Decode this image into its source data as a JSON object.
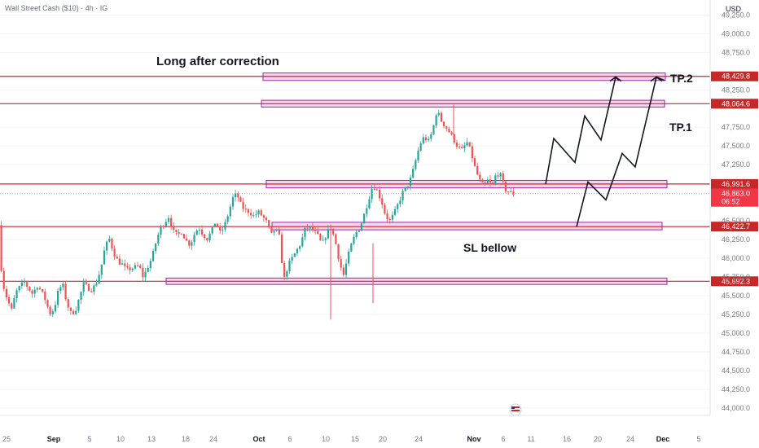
{
  "header": {
    "symbol": "Wall Street Cash ($10) · 4h · IG",
    "currency": "USD"
  },
  "chart_data": {
    "type": "candlestick",
    "title": "",
    "ylim": [
      43900,
      49450
    ],
    "yticks": [
      {
        "value": 49250,
        "label": "49,250.0"
      },
      {
        "value": 49000,
        "label": "49,000.0"
      },
      {
        "value": 48750,
        "label": "48,750.0"
      },
      {
        "value": 48250,
        "label": "48,250.0"
      },
      {
        "value": 47750,
        "label": "47,750.0"
      },
      {
        "value": 47500,
        "label": "47,500.0"
      },
      {
        "value": 47250,
        "label": "47,250.0"
      },
      {
        "value": 46500,
        "label": "46,500.0"
      },
      {
        "value": 46250,
        "label": "46,250.0"
      },
      {
        "value": 46000,
        "label": "46,000.0"
      },
      {
        "value": 45750,
        "label": "45,750.0"
      },
      {
        "value": 45500,
        "label": "45,500.0"
      },
      {
        "value": 45250,
        "label": "45,250.0"
      },
      {
        "value": 45000,
        "label": "45,000.0"
      },
      {
        "value": 44750,
        "label": "44,750.0"
      },
      {
        "value": 44500,
        "label": "44,500.0"
      },
      {
        "value": 44250,
        "label": "44,250.0"
      },
      {
        "value": 44000,
        "label": "44,000.0"
      }
    ],
    "xticks": [
      {
        "label": "25",
        "bold": false
      },
      {
        "label": "Sep",
        "bold": true
      },
      {
        "label": "5",
        "bold": false
      },
      {
        "label": "10",
        "bold": false
      },
      {
        "label": "13",
        "bold": false
      },
      {
        "label": "18",
        "bold": false
      },
      {
        "label": "24",
        "bold": false
      },
      {
        "label": "Oct",
        "bold": true
      },
      {
        "label": "6",
        "bold": false
      },
      {
        "label": "10",
        "bold": false
      },
      {
        "label": "15",
        "bold": false
      },
      {
        "label": "20",
        "bold": false
      },
      {
        "label": "24",
        "bold": false
      },
      {
        "label": "Nov",
        "bold": true
      },
      {
        "label": "6",
        "bold": false
      },
      {
        "label": "11",
        "bold": false
      },
      {
        "label": "16",
        "bold": false
      },
      {
        "label": "20",
        "bold": false
      },
      {
        "label": "24",
        "bold": false
      },
      {
        "label": "Dec",
        "bold": true
      },
      {
        "label": "5",
        "bold": false
      }
    ],
    "price_levels": [
      {
        "value": 48429.8,
        "label": "48,429.8"
      },
      {
        "value": 48064.6,
        "label": "48,064.6"
      },
      {
        "value": 46991.6,
        "label": "46,991.6"
      },
      {
        "value": 46422.7,
        "label": "46,422.7"
      },
      {
        "value": 45692.3,
        "label": "45,692.3"
      }
    ],
    "current_price": {
      "value": 46863.0,
      "label": "46,863.0",
      "countdown": "06:52"
    },
    "zones": [
      {
        "low": 48375,
        "high": 48475
      },
      {
        "low": 48020,
        "high": 48110
      },
      {
        "low": 46940,
        "high": 47040
      },
      {
        "low": 46380,
        "high": 46480
      },
      {
        "low": 45650,
        "high": 45735
      }
    ],
    "annotations": [
      {
        "text": "Long after correction"
      },
      {
        "text": "TP.2"
      },
      {
        "text": "TP.1"
      },
      {
        "text": "SL bellow"
      }
    ],
    "path_points": [
      [
        46442,
        0
      ],
      [
        45920,
        2
      ],
      [
        45660,
        4
      ],
      [
        45540,
        6
      ],
      [
        45420,
        9
      ],
      [
        45300,
        12
      ],
      [
        45540,
        16
      ],
      [
        45620,
        20
      ],
      [
        45680,
        24
      ],
      [
        45600,
        28
      ],
      [
        45520,
        32
      ],
      [
        45640,
        36
      ],
      [
        45560,
        40
      ],
      [
        45440,
        44
      ],
      [
        45260,
        48
      ],
      [
        45320,
        52
      ],
      [
        45560,
        56
      ],
      [
        45660,
        60
      ],
      [
        45400,
        64
      ],
      [
        45260,
        68
      ],
      [
        45300,
        72
      ],
      [
        45480,
        76
      ],
      [
        45660,
        80
      ],
      [
        45600,
        84
      ],
      [
        45580,
        88
      ],
      [
        45680,
        92
      ],
      [
        45860,
        96
      ],
      [
        46150,
        100
      ],
      [
        46260,
        104
      ],
      [
        46080,
        108
      ],
      [
        45960,
        112
      ],
      [
        45920,
        116
      ],
      [
        45840,
        120
      ],
      [
        45860,
        124
      ],
      [
        45880,
        128
      ],
      [
        45900,
        132
      ],
      [
        45740,
        136
      ],
      [
        45880,
        140
      ],
      [
        46000,
        144
      ],
      [
        46220,
        148
      ],
      [
        46400,
        152
      ],
      [
        46480,
        156
      ],
      [
        46560,
        160
      ],
      [
        46360,
        164
      ],
      [
        46300,
        168
      ],
      [
        46360,
        172
      ],
      [
        46240,
        176
      ],
      [
        46180,
        180
      ],
      [
        46320,
        184
      ],
      [
        46420,
        188
      ],
      [
        46320,
        192
      ],
      [
        46260,
        196
      ],
      [
        46360,
        200
      ],
      [
        46500,
        204
      ],
      [
        46340,
        208
      ],
      [
        46420,
        212
      ],
      [
        46600,
        216
      ],
      [
        46800,
        220
      ],
      [
        46860,
        224
      ],
      [
        46700,
        228
      ],
      [
        46640,
        232
      ],
      [
        46620,
        236
      ],
      [
        46560,
        240
      ],
      [
        46620,
        244
      ],
      [
        46560,
        248
      ],
      [
        46480,
        252
      ],
      [
        46300,
        256
      ],
      [
        46400,
        260
      ],
      [
        46280,
        264
      ],
      [
        45700,
        268
      ],
      [
        45900,
        272
      ],
      [
        46000,
        276
      ],
      [
        46100,
        280
      ],
      [
        46200,
        284
      ],
      [
        46380,
        288
      ],
      [
        46420,
        292
      ],
      [
        46360,
        296
      ],
      [
        46300,
        300
      ],
      [
        46180,
        304
      ],
      [
        46320,
        308
      ],
      [
        46420,
        312
      ],
      [
        46260,
        316
      ],
      [
        45980,
        320
      ],
      [
        45760,
        324
      ],
      [
        46000,
        328
      ],
      [
        46200,
        332
      ],
      [
        46340,
        336
      ],
      [
        46420,
        340
      ],
      [
        46600,
        344
      ],
      [
        46800,
        348
      ],
      [
        46980,
        352
      ],
      [
        46900,
        356
      ],
      [
        46760,
        360
      ],
      [
        46560,
        364
      ],
      [
        46500,
        368
      ],
      [
        46600,
        372
      ],
      [
        46740,
        376
      ],
      [
        46880,
        380
      ],
      [
        46960,
        384
      ],
      [
        47080,
        388
      ],
      [
        47300,
        392
      ],
      [
        47520,
        396
      ],
      [
        47620,
        400
      ],
      [
        47560,
        404
      ],
      [
        47700,
        408
      ],
      [
        47980,
        412
      ],
      [
        47840,
        416
      ],
      [
        47760,
        420
      ],
      [
        47680,
        424
      ],
      [
        47580,
        428
      ],
      [
        47480,
        432
      ],
      [
        47440,
        436
      ],
      [
        47560,
        440
      ],
      [
        47420,
        444
      ],
      [
        47200,
        448
      ],
      [
        47040,
        452
      ],
      [
        46960,
        456
      ],
      [
        47040,
        460
      ],
      [
        46960,
        464
      ],
      [
        47140,
        468
      ],
      [
        47100,
        472
      ],
      [
        46920,
        476
      ],
      [
        46880,
        480
      ],
      [
        46863,
        484
      ]
    ],
    "projection_a": [
      [
        46991,
        0
      ],
      [
        47600,
        1
      ],
      [
        47280,
        2
      ],
      [
        47900,
        3
      ],
      [
        47580,
        4
      ],
      [
        48420,
        5
      ],
      [
        48375,
        6
      ]
    ],
    "projection_b": [
      [
        46420,
        0
      ],
      [
        47020,
        1
      ],
      [
        46780,
        2
      ],
      [
        47400,
        3
      ],
      [
        47220,
        4
      ],
      [
        48420,
        5
      ],
      [
        48375,
        6
      ]
    ],
    "colors": {
      "up": "#26a69a",
      "down": "#ef5350",
      "level": "#c62828",
      "zone_fill": "#f8c6ea",
      "zone_stroke": "#9c27b0",
      "grid": "#f0f3fa",
      "axis_text": "#787b86",
      "current_label": "#f23645"
    }
  }
}
